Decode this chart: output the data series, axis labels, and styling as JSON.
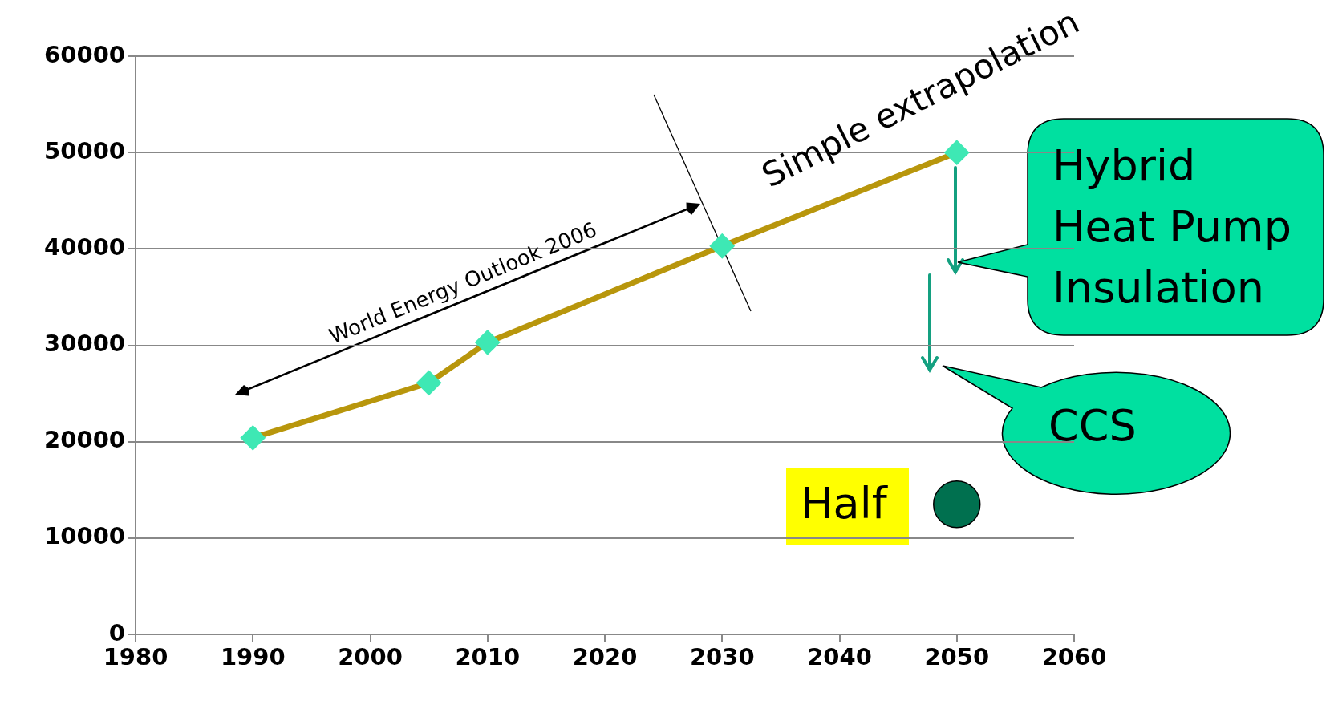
{
  "chart_data": {
    "type": "line",
    "x": [
      1990,
      2005,
      2010,
      2030,
      2050
    ],
    "xlim": [
      1980,
      2060
    ],
    "xticks": [
      1980,
      1990,
      2000,
      2010,
      2020,
      2030,
      2040,
      2050,
      2060
    ],
    "ylim": [
      0,
      60000
    ],
    "yticks": [
      0,
      10000,
      20000,
      30000,
      40000,
      50000,
      60000
    ],
    "grid": "y",
    "legend": false,
    "marker": "diamond",
    "line_style": "solid",
    "series": [
      {
        "type": "line",
        "color": "#b8960c",
        "values": [
          20400,
          26100,
          30300,
          40300,
          50000
        ]
      },
      {
        "type": "scatter",
        "marker": "circle",
        "x": [
          2050
        ],
        "color": "#00704f",
        "values": [
          13500
        ]
      }
    ],
    "annotations": [
      "Simple extrapolation",
      "World Energy Outlook 2006",
      "Hybrid\nHeat Pump\nInsulation",
      "CCS",
      "Half"
    ]
  }
}
